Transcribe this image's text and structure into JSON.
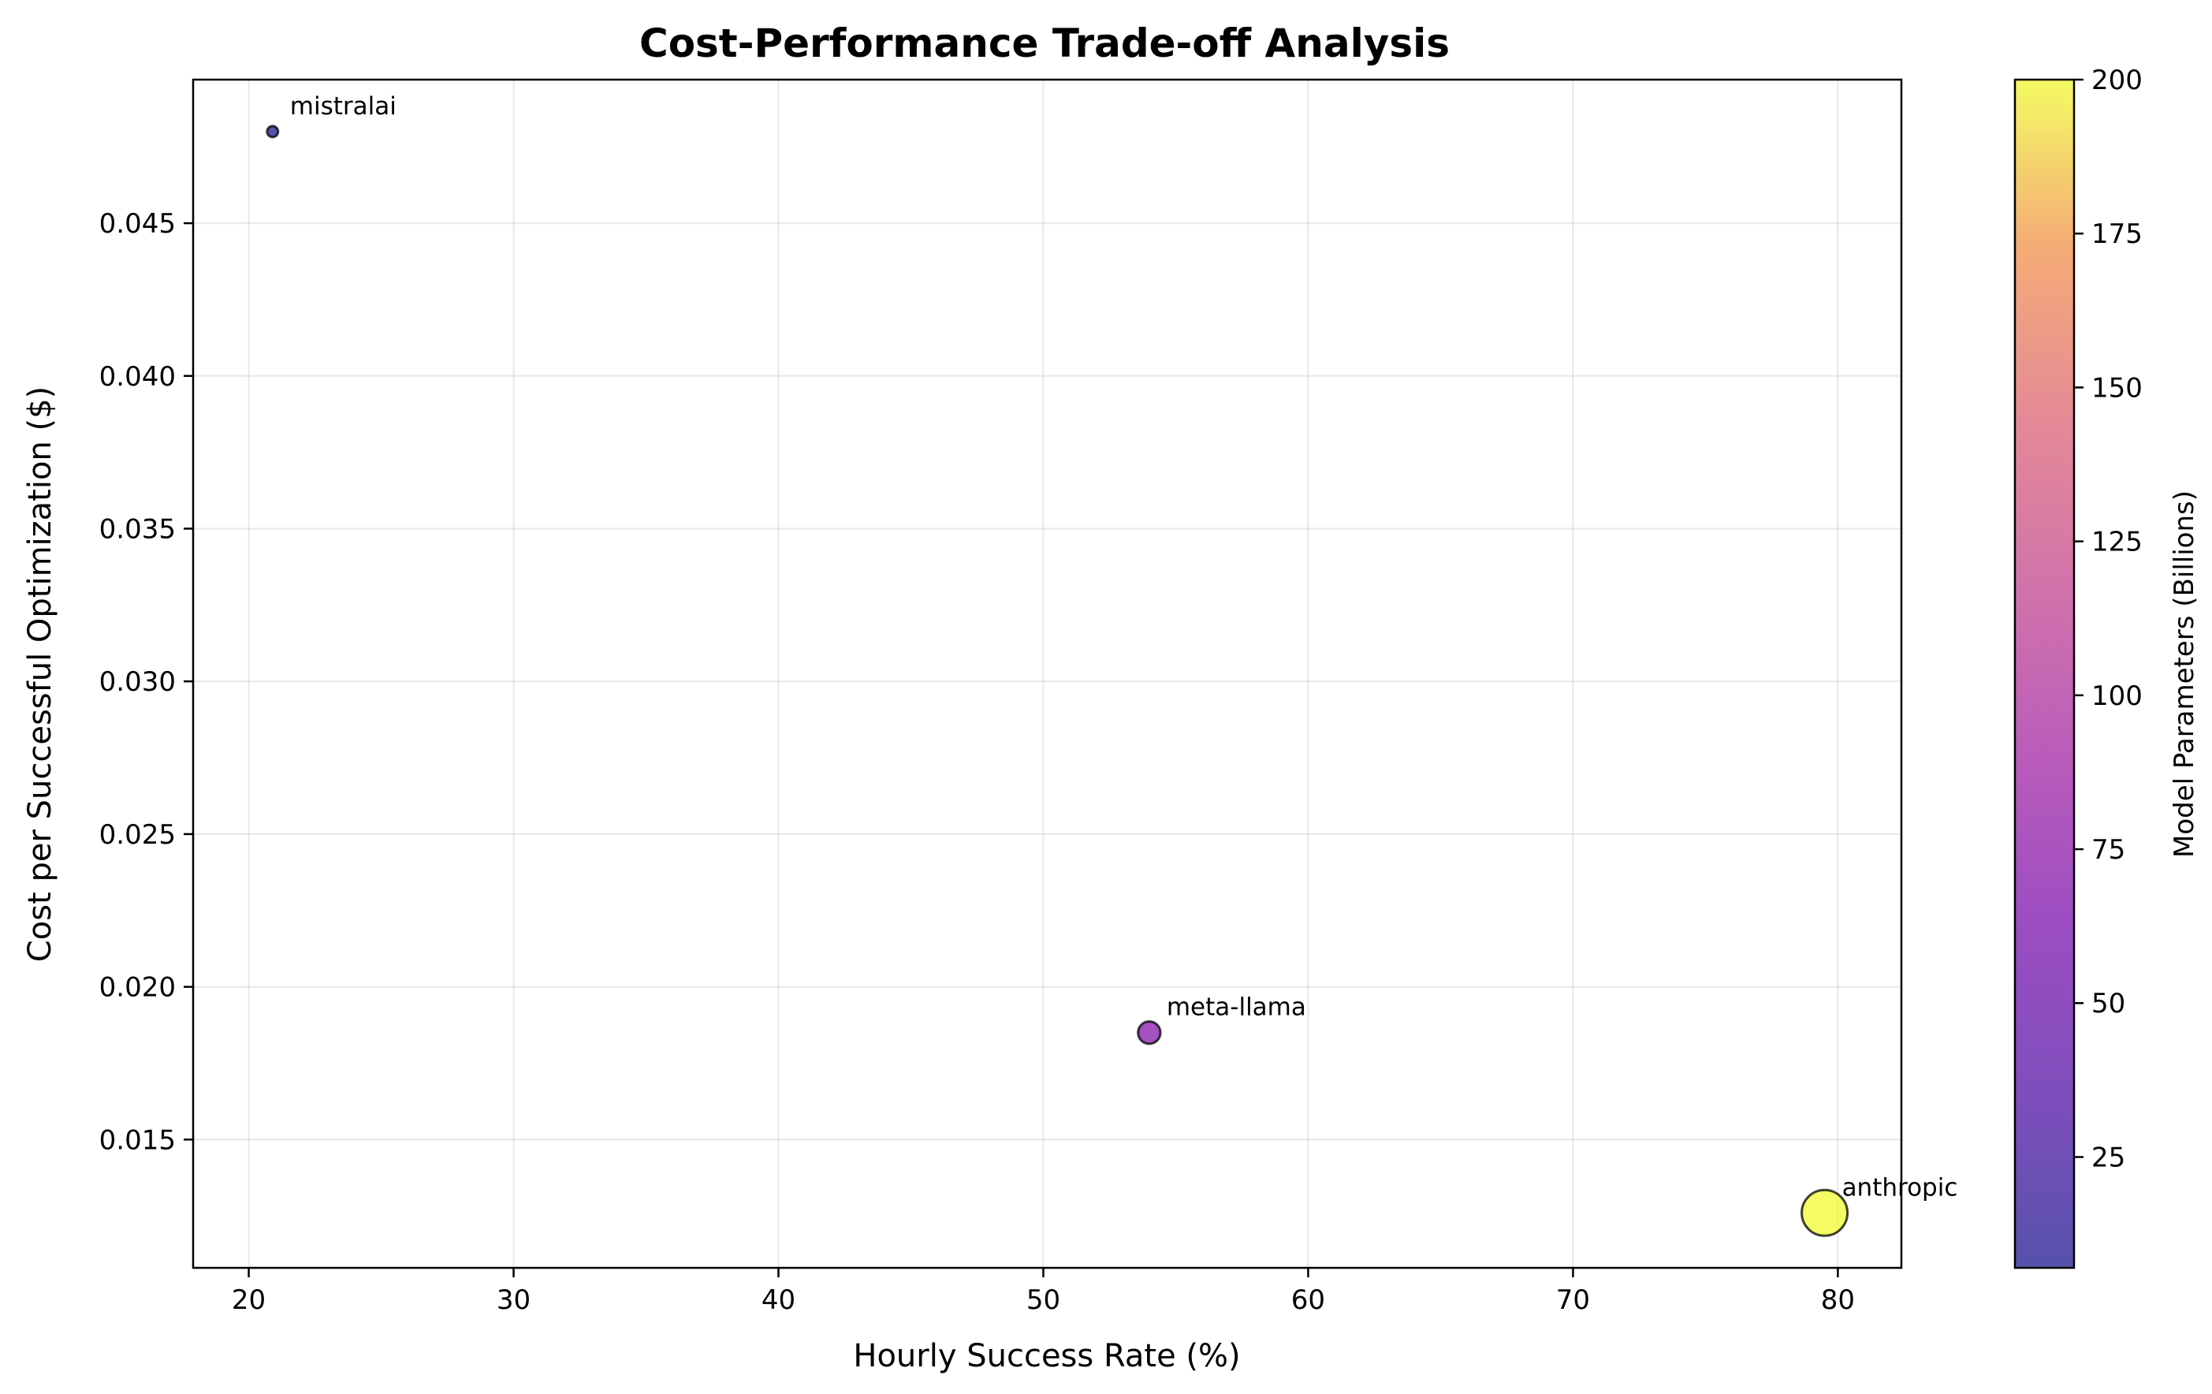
{
  "chart_data": {
    "type": "scatter",
    "title": "Cost-Performance Trade-off Analysis",
    "xlabel": "Hourly Success Rate (%)",
    "ylabel": "Cost per Successful Optimization ($)",
    "xlim": [
      17.9,
      82.4
    ],
    "ylim": [
      0.0108,
      0.0497
    ],
    "xticks": [
      20,
      30,
      40,
      50,
      60,
      70,
      80
    ],
    "yticks": [
      0.015,
      0.02,
      0.025,
      0.03,
      0.035,
      0.04,
      0.045
    ],
    "ytick_decimals": 3,
    "grid": true,
    "colormap": "plasma",
    "colorbar": {
      "label": "Model Parameters (Billions)",
      "range": [
        7,
        200
      ],
      "ticks": [
        25,
        50,
        75,
        100,
        125,
        150,
        175,
        200
      ]
    },
    "points": [
      {
        "label": "mistralai",
        "x": 20.9,
        "y": 0.048,
        "params": 7
      },
      {
        "label": "meta-llama",
        "x": 54.0,
        "y": 0.0185,
        "params": 70
      },
      {
        "label": "anthropic",
        "x": 79.5,
        "y": 0.0126,
        "params": 200
      }
    ]
  }
}
